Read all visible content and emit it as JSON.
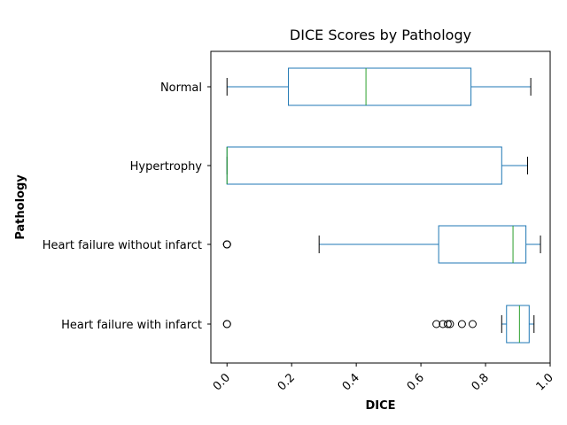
{
  "chart_data": {
    "type": "boxplot",
    "orientation": "horizontal",
    "title": "DICE Scores by Pathology",
    "xlabel": "DICE",
    "ylabel": "Pathology",
    "xlim": [
      -0.05,
      1.0
    ],
    "xticks": [
      0.0,
      0.2,
      0.4,
      0.6,
      0.8,
      1.0
    ],
    "xtick_labels": [
      "0.0",
      "0.2",
      "0.4",
      "0.6",
      "0.8",
      "1.0"
    ],
    "xtick_rotation": 45,
    "grid": false,
    "colors": {
      "box": "#1f77b4",
      "median": "#2ca02c",
      "whisker": "#1f77b4",
      "cap": "#000000",
      "flier": "#000000"
    },
    "categories": [
      "Normal",
      "Hypertrophy",
      "Heart failure without infarct",
      "Heart failure with infarct"
    ],
    "series": [
      {
        "category": "Normal",
        "whislo": 0.0,
        "q1": 0.19,
        "median": 0.43,
        "q3": 0.755,
        "whishi": 0.94,
        "fliers": []
      },
      {
        "category": "Hypertrophy",
        "whislo": 0.0,
        "q1": 0.0,
        "median": 0.0,
        "q3": 0.85,
        "whishi": 0.93,
        "fliers": []
      },
      {
        "category": "Heart failure without infarct",
        "whislo": 0.285,
        "q1": 0.655,
        "median": 0.885,
        "q3": 0.925,
        "whishi": 0.97,
        "fliers": [
          0.0,
          0.0,
          0.0
        ]
      },
      {
        "category": "Heart failure with infarct",
        "whislo": 0.85,
        "q1": 0.865,
        "median": 0.905,
        "q3": 0.935,
        "whishi": 0.95,
        "fliers": [
          0.0,
          0.0,
          0.648,
          0.668,
          0.683,
          0.69,
          0.727,
          0.76
        ]
      }
    ]
  }
}
